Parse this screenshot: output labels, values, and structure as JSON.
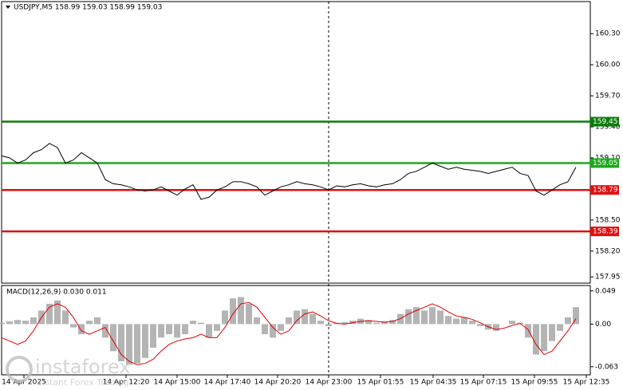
{
  "watermark": {
    "name": "instaforex",
    "tagline": "Instant Forex Trading"
  },
  "chart_data": [
    {
      "type": "line",
      "title": "USDJPY,M5 158.99 159.03 158.99 159.03",
      "color": "#000000",
      "xlim": [
        0,
        73.8
      ],
      "ylim": [
        157.89,
        160.61
      ],
      "yticks": [
        {
          "value": 157.95,
          "label": "157.95"
        },
        {
          "value": 158.2,
          "label": "158.20"
        },
        {
          "value": 158.5,
          "label": "158.50"
        },
        {
          "value": 159.1,
          "label": "159.10"
        },
        {
          "value": 159.4,
          "label": "159.40"
        },
        {
          "value": 159.7,
          "label": "159.70"
        },
        {
          "value": 160.0,
          "label": "160.00"
        },
        {
          "value": 160.3,
          "label": "160.30"
        }
      ],
      "xticks": [
        {
          "value": 2.8,
          "label": "14 Apr 2025"
        },
        {
          "value": 15.6,
          "label": "14 Apr 12:20"
        },
        {
          "value": 22,
          "label": "14 Apr 15:00"
        },
        {
          "value": 28.3,
          "label": "14 Apr 17:40"
        },
        {
          "value": 34.6,
          "label": "14 Apr 20:20"
        },
        {
          "value": 41,
          "label": "14 Apr 23:00"
        },
        {
          "value": 47.5,
          "label": "15 Apr 01:55"
        },
        {
          "value": 54.1,
          "label": "15 Apr 04:35"
        },
        {
          "value": 60.4,
          "label": "15 Apr 07:15"
        },
        {
          "value": 66.8,
          "label": "15 Apr 09:55"
        },
        {
          "value": 73.3,
          "label": "15 Apr 12:35"
        }
      ],
      "levels": [
        {
          "value": 159.45,
          "color": "#0a7d0a"
        },
        {
          "value": 159.05,
          "color": "#1ea81e"
        },
        {
          "value": 158.79,
          "color": "#e01010"
        },
        {
          "value": 158.39,
          "color": "#e01010"
        }
      ],
      "values": [
        159.12,
        159.1,
        159.05,
        159.08,
        159.15,
        159.18,
        159.24,
        159.2,
        159.05,
        159.08,
        159.15,
        159.1,
        159.05,
        158.89,
        158.85,
        158.84,
        158.82,
        158.79,
        158.78,
        158.79,
        158.82,
        158.78,
        158.74,
        158.8,
        158.84,
        158.7,
        158.72,
        158.79,
        158.82,
        158.87,
        158.87,
        158.85,
        158.82,
        158.74,
        158.78,
        158.82,
        158.84,
        158.87,
        158.85,
        158.84,
        158.82,
        158.79,
        158.83,
        158.82,
        158.84,
        158.85,
        158.83,
        158.82,
        158.84,
        158.85,
        158.89,
        158.95,
        158.97,
        159.01,
        159.05,
        159.02,
        158.99,
        159.01,
        158.99,
        158.98,
        158.97,
        158.95,
        158.97,
        158.99,
        159.01,
        158.95,
        158.93,
        158.78,
        158.74,
        158.79,
        158.84,
        158.87,
        159.01
      ]
    },
    {
      "type": "macd",
      "title": "MACD(12,26,9) 0.030 0.011",
      "ylim": [
        -0.075,
        0.057
      ],
      "yticks": [
        -0.063,
        {
          "value": 0,
          "label": "0.00"
        },
        0.049
      ],
      "histogram_color": "#b4b4b4",
      "signal_color": "#e00000",
      "histogram": [
        0.002,
        0.004,
        0.006,
        0.005,
        0.01,
        0.02,
        0.03,
        0.035,
        0.02,
        -0.005,
        -0.015,
        0.005,
        0.01,
        -0.02,
        -0.04,
        -0.055,
        -0.06,
        -0.058,
        -0.05,
        -0.035,
        -0.02,
        -0.015,
        -0.02,
        -0.015,
        0.005,
        0.002,
        -0.02,
        -0.01,
        0.02,
        0.038,
        0.04,
        0.03,
        0.01,
        -0.015,
        -0.02,
        -0.01,
        0.01,
        0.02,
        0.022,
        0.015,
        0.005,
        -0.003,
        0.002,
        0.003,
        0.005,
        0.008,
        0.006,
        0.002,
        0.004,
        0.006,
        0.015,
        0.022,
        0.025,
        0.02,
        0.025,
        0.02,
        0.012,
        0.008,
        0.01,
        0.005,
        -0.003,
        -0.008,
        -0.01,
        0,
        0.005,
        0.002,
        -0.02,
        -0.045,
        -0.04,
        -0.025,
        -0.01,
        0.01,
        0.025
      ],
      "signal": [
        -0.02,
        -0.025,
        -0.03,
        -0.025,
        -0.01,
        0.01,
        0.025,
        0.03,
        0.025,
        0.01,
        -0.01,
        -0.015,
        -0.01,
        -0.005,
        -0.025,
        -0.045,
        -0.055,
        -0.06,
        -0.058,
        -0.052,
        -0.04,
        -0.03,
        -0.025,
        -0.022,
        -0.02,
        -0.015,
        -0.02,
        -0.02,
        -0.005,
        0.015,
        0.03,
        0.032,
        0.025,
        0.01,
        -0.005,
        -0.015,
        -0.01,
        0.005,
        0.015,
        0.018,
        0.012,
        0.005,
        0.001,
        0,
        0.002,
        0.004,
        0.005,
        0.004,
        0.003,
        0.004,
        0.008,
        0.015,
        0.02,
        0.025,
        0.03,
        0.025,
        0.018,
        0.012,
        0.01,
        0.007,
        0.002,
        -0.004,
        -0.008,
        -0.006,
        -0.002,
        0.001,
        -0.008,
        -0.03,
        -0.045,
        -0.04,
        -0.025,
        -0.01,
        0.008
      ]
    }
  ]
}
